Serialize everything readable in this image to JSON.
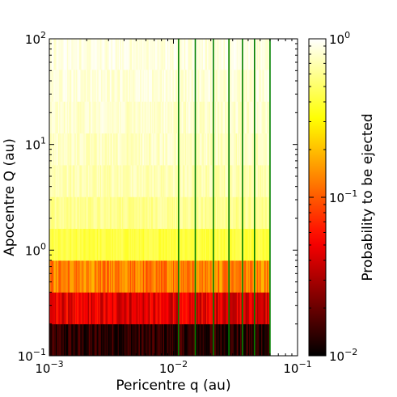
{
  "chart_data": {
    "type": "heatmap",
    "title": "",
    "xlabel": "Pericentre q (au)",
    "ylabel": "Apocentre Q (au)",
    "colorbar_label": "Probability to be ejected",
    "x_scale": "log",
    "y_scale": "log",
    "xlim": [
      0.001,
      0.1
    ],
    "ylim": [
      0.1,
      100
    ],
    "x_tick_labels": [
      {
        "value": 0.001,
        "base": "10",
        "exp": "−3"
      },
      {
        "value": 0.01,
        "base": "10",
        "exp": "−2"
      },
      {
        "value": 0.1,
        "base": "10",
        "exp": "−1"
      }
    ],
    "y_tick_labels": [
      {
        "value": 0.1,
        "base": "10",
        "exp": "−1"
      },
      {
        "value": 1,
        "base": "10",
        "exp": "0"
      },
      {
        "value": 10,
        "base": "10",
        "exp": "1"
      },
      {
        "value": 100,
        "base": "10",
        "exp": "2"
      }
    ],
    "colorbar": {
      "scale": "log",
      "range": [
        0.01,
        1
      ],
      "tick_labels": [
        {
          "value": 0.01,
          "base": "10",
          "exp": "−2"
        },
        {
          "value": 0.1,
          "base": "10",
          "exp": "−1"
        },
        {
          "value": 1,
          "base": "10",
          "exp": "0"
        }
      ],
      "colormap": "hot"
    },
    "data_extent_q_max": 0.06,
    "q_bins": 200,
    "Q_band_edges": [
      0.1,
      0.2,
      0.4,
      0.8,
      1.6,
      3.2,
      6.4,
      12.8,
      25.6,
      51.2,
      100
    ],
    "Q_band_probability": [
      0.013,
      0.045,
      0.13,
      0.42,
      0.6,
      0.7,
      0.76,
      0.8,
      0.84,
      0.87
    ],
    "Q_band_min_q": [
      0.001,
      0.001,
      0.001,
      0.001,
      0.001,
      0.001,
      0.001,
      0.001,
      0.001,
      0.001
    ],
    "vertical_lines_q": [
      0.011,
      0.015,
      0.021,
      0.028,
      0.036,
      0.045,
      0.06
    ],
    "vertical_line_color": "#008000"
  }
}
